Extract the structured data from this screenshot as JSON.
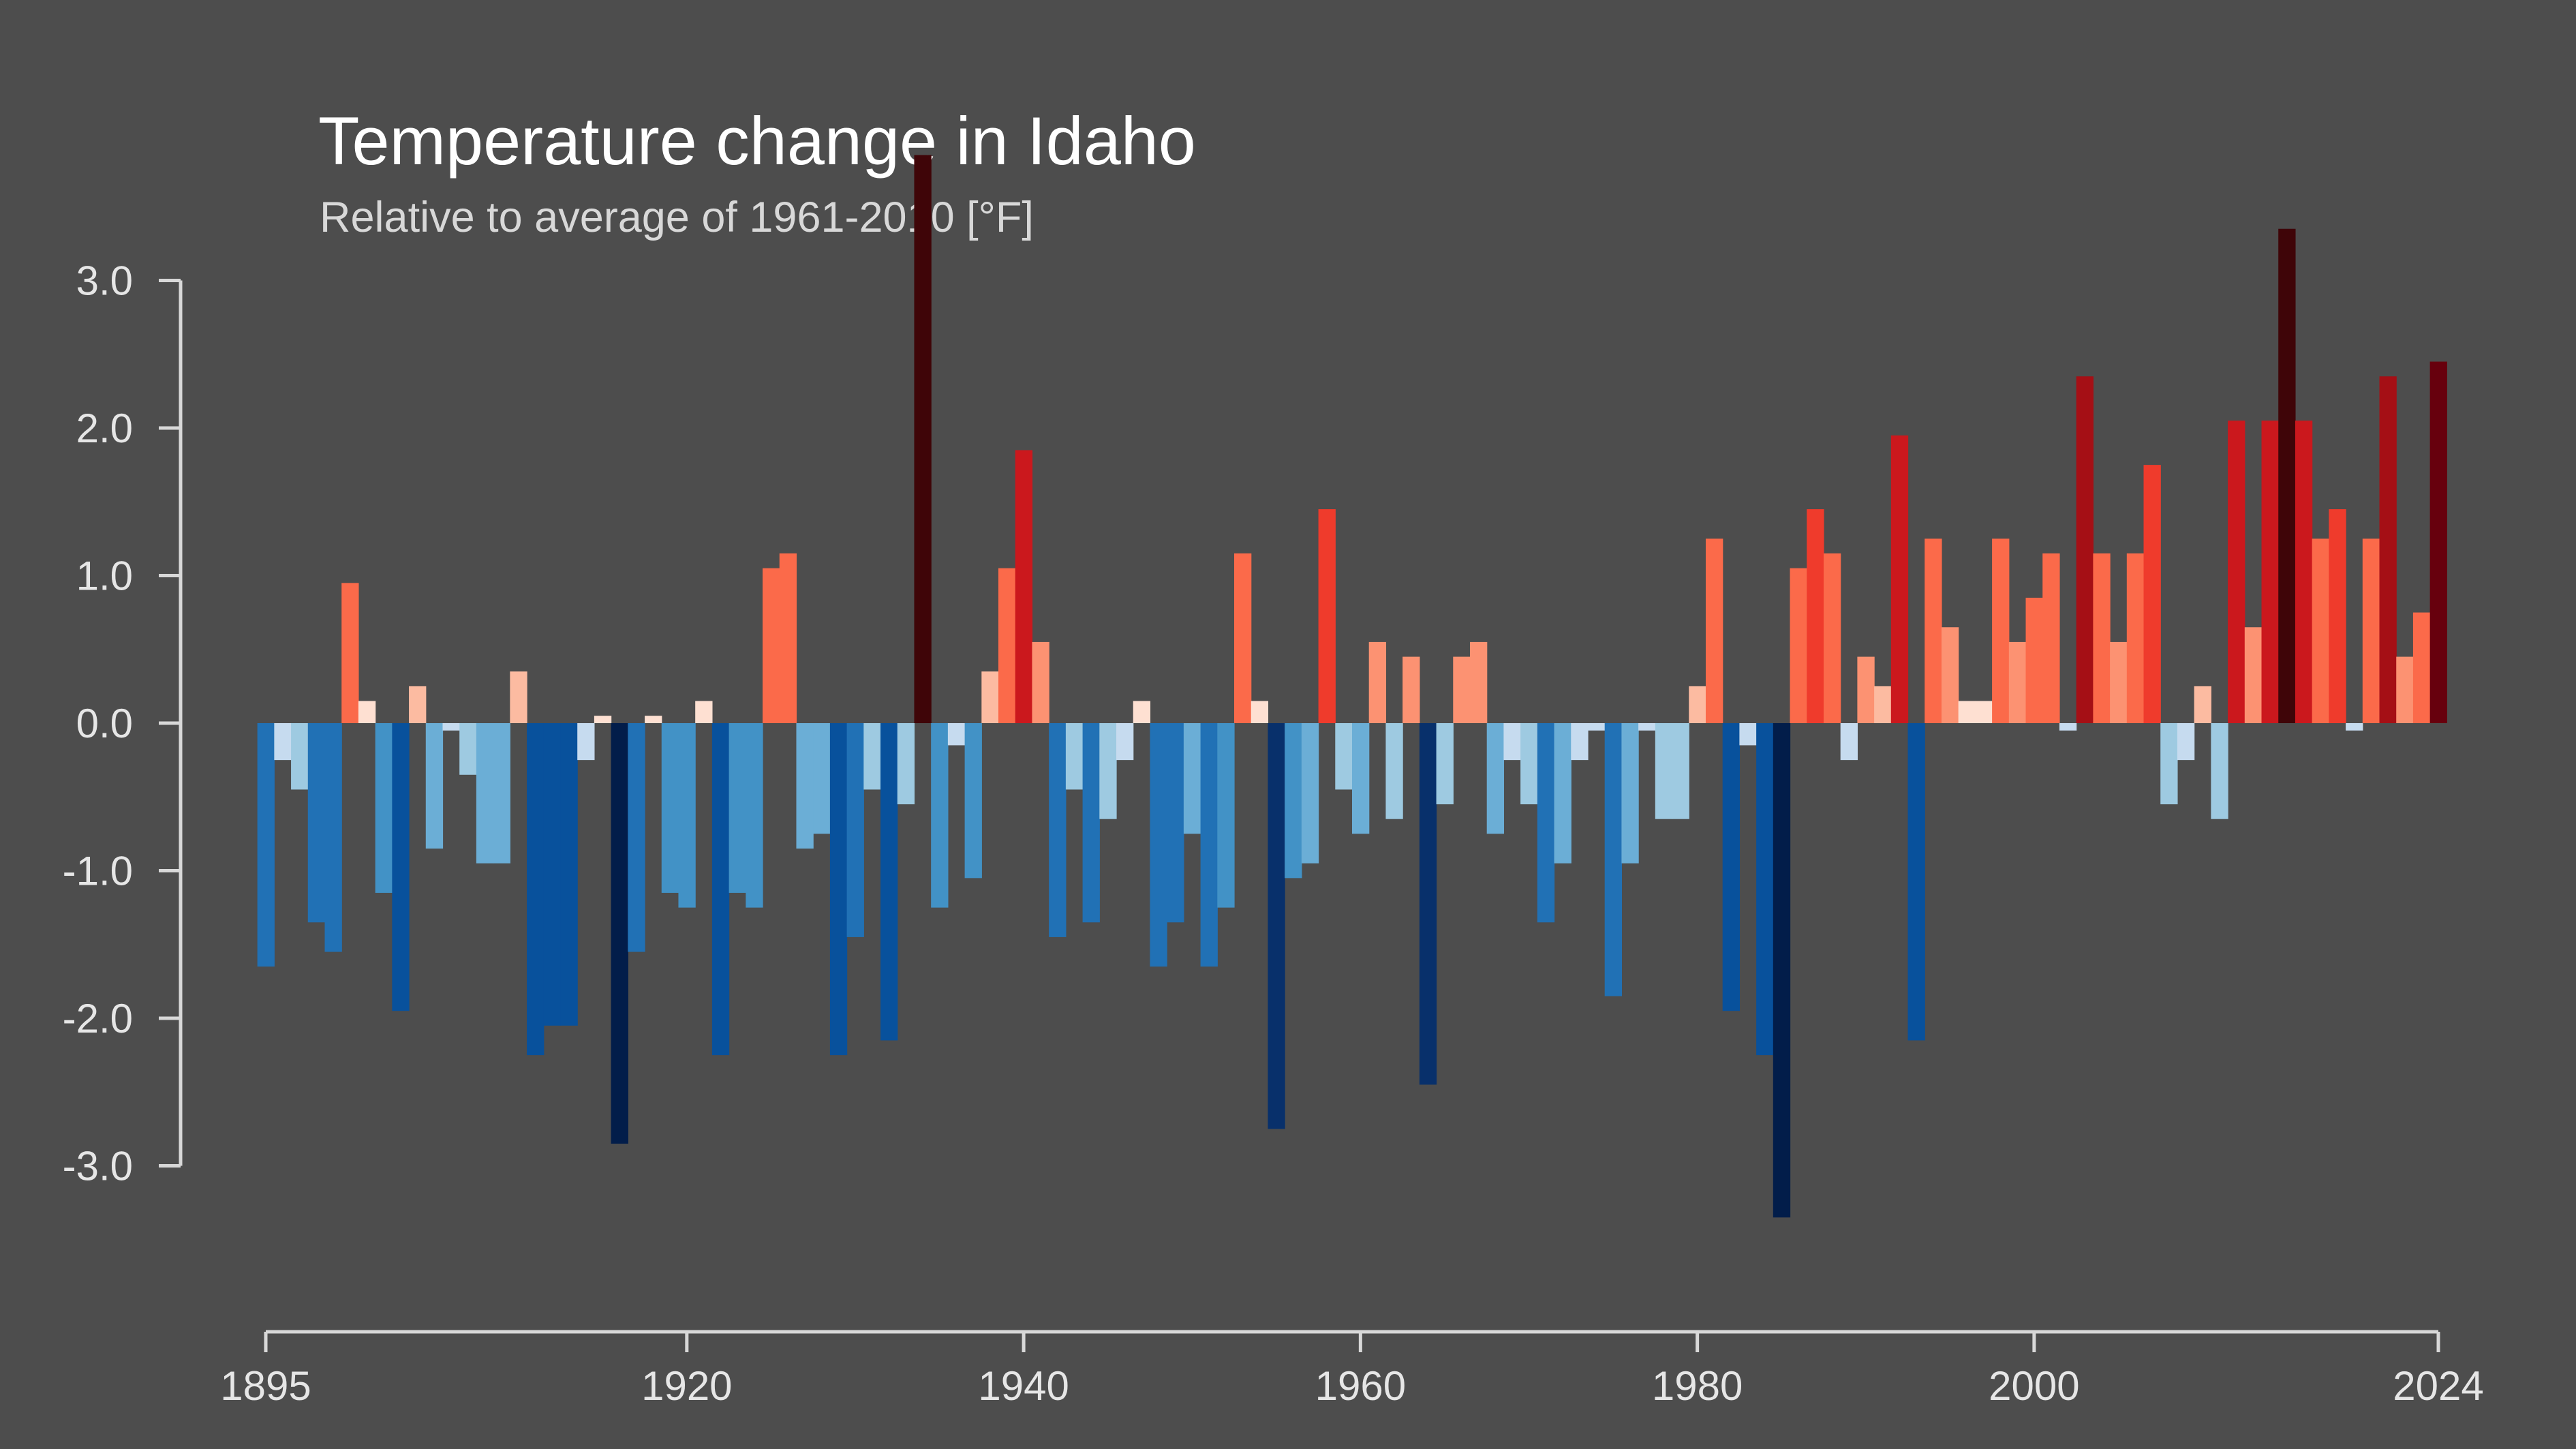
{
  "chart_data": {
    "type": "bar",
    "title": "Temperature change in Idaho",
    "subtitle": "Relative to average of 1961-2010  [°F]",
    "xlabel": "",
    "ylabel": "",
    "x_range": [
      1895,
      2024
    ],
    "ylim": [
      -3.5,
      3.9
    ],
    "y_ticks": [
      3.0,
      2.0,
      1.0,
      0.0,
      -1.0,
      -2.0,
      -3.0
    ],
    "y_tick_labels": [
      "3.0",
      "2.0",
      "1.0",
      "0.0",
      "-1.0",
      "-2.0",
      "-3.0"
    ],
    "x_ticks": [
      1895,
      1920,
      1940,
      1960,
      1980,
      2000,
      2024
    ],
    "x_tick_labels": [
      "1895",
      "1920",
      "1940",
      "1960",
      "1980",
      "2000",
      "2024"
    ],
    "grid": false,
    "legend": "none",
    "color_scale": {
      "negative": [
        "#c6dbef",
        "#9ecae1",
        "#6baed6",
        "#4292c6",
        "#2171b5",
        "#08519c",
        "#08306b",
        "#021d4a"
      ],
      "positive": [
        "#fee0d2",
        "#fcbba1",
        "#fc9272",
        "#fb6a4a",
        "#ef3b2c",
        "#cb181d",
        "#a50f15",
        "#67000d",
        "#3f0508"
      ]
    },
    "series": [
      {
        "years": [
          1895,
          1896,
          1897,
          1898,
          1899,
          1900,
          1901,
          1902,
          1903,
          1904,
          1905,
          1906,
          1907,
          1908,
          1909,
          1910,
          1911,
          1912,
          1913,
          1914,
          1915,
          1916,
          1917,
          1918,
          1919,
          1920,
          1921,
          1922,
          1923,
          1924,
          1925,
          1926,
          1927,
          1928,
          1929,
          1930,
          1931,
          1932,
          1933,
          1934,
          1935,
          1936,
          1937,
          1938,
          1939,
          1940,
          1941,
          1942,
          1943,
          1944,
          1945,
          1946,
          1947,
          1948,
          1949,
          1950,
          1951,
          1952,
          1953,
          1954,
          1955,
          1956,
          1957,
          1958,
          1959,
          1960,
          1961,
          1962,
          1963,
          1964,
          1965,
          1966,
          1967,
          1968,
          1969,
          1970,
          1971,
          1972,
          1973,
          1974,
          1975,
          1976,
          1977,
          1978,
          1979,
          1980,
          1981,
          1982,
          1983,
          1984,
          1985,
          1986,
          1987,
          1988,
          1989,
          1990,
          1991,
          1992,
          1993,
          1994,
          1995,
          1996,
          1997,
          1998,
          1999,
          2000,
          2001,
          2002,
          2003,
          2004,
          2005,
          2006,
          2007,
          2008,
          2009,
          2010,
          2011,
          2012,
          2013,
          2014,
          2015,
          2016,
          2017,
          2018,
          2019,
          2020,
          2021,
          2022,
          2023,
          2024
        ],
        "values": [
          -1.65,
          -0.25,
          -0.45,
          -1.35,
          -1.55,
          0.95,
          0.15,
          -1.15,
          -1.95,
          0.25,
          -0.85,
          -0.05,
          -0.35,
          -0.95,
          -0.95,
          0.35,
          -2.25,
          -2.05,
          -2.05,
          -0.25,
          0.05,
          -2.85,
          -1.55,
          0.05,
          -1.15,
          -1.25,
          0.15,
          -2.25,
          -1.15,
          -1.25,
          1.05,
          1.15,
          -0.85,
          -0.75,
          -2.25,
          -1.45,
          -0.45,
          -2.15,
          -0.55,
          3.85,
          -1.25,
          -0.15,
          -1.05,
          0.35,
          1.05,
          1.85,
          0.55,
          -1.45,
          -0.45,
          -1.35,
          -0.65,
          -0.25,
          0.15,
          -1.65,
          -1.35,
          -0.75,
          -1.65,
          -1.25,
          1.15,
          0.15,
          -2.75,
          -1.05,
          -0.95,
          1.45,
          -0.45,
          -0.75,
          0.55,
          -0.65,
          0.45,
          -2.45,
          -0.55,
          0.45,
          0.55,
          -0.75,
          -0.25,
          -0.55,
          -1.35,
          -0.95,
          -0.25,
          -0.05,
          -1.85,
          -0.95,
          -0.05,
          -0.65,
          -0.65,
          0.25,
          1.25,
          -1.95,
          -0.15,
          -2.25,
          -3.35,
          1.05,
          1.45,
          1.15,
          -0.25,
          0.45,
          0.25,
          1.95,
          -2.15,
          1.25,
          0.65,
          0.15,
          0.15,
          1.25,
          0.55,
          0.85,
          1.15,
          -0.05,
          2.35,
          1.15,
          0.55,
          1.15,
          1.75,
          -0.55,
          -0.25,
          0.25,
          -0.65,
          2.05,
          0.65,
          2.05,
          3.35,
          2.05,
          1.25,
          1.45,
          -0.05,
          1.25,
          2.35,
          0.45,
          0.75,
          2.45
        ]
      }
    ]
  }
}
